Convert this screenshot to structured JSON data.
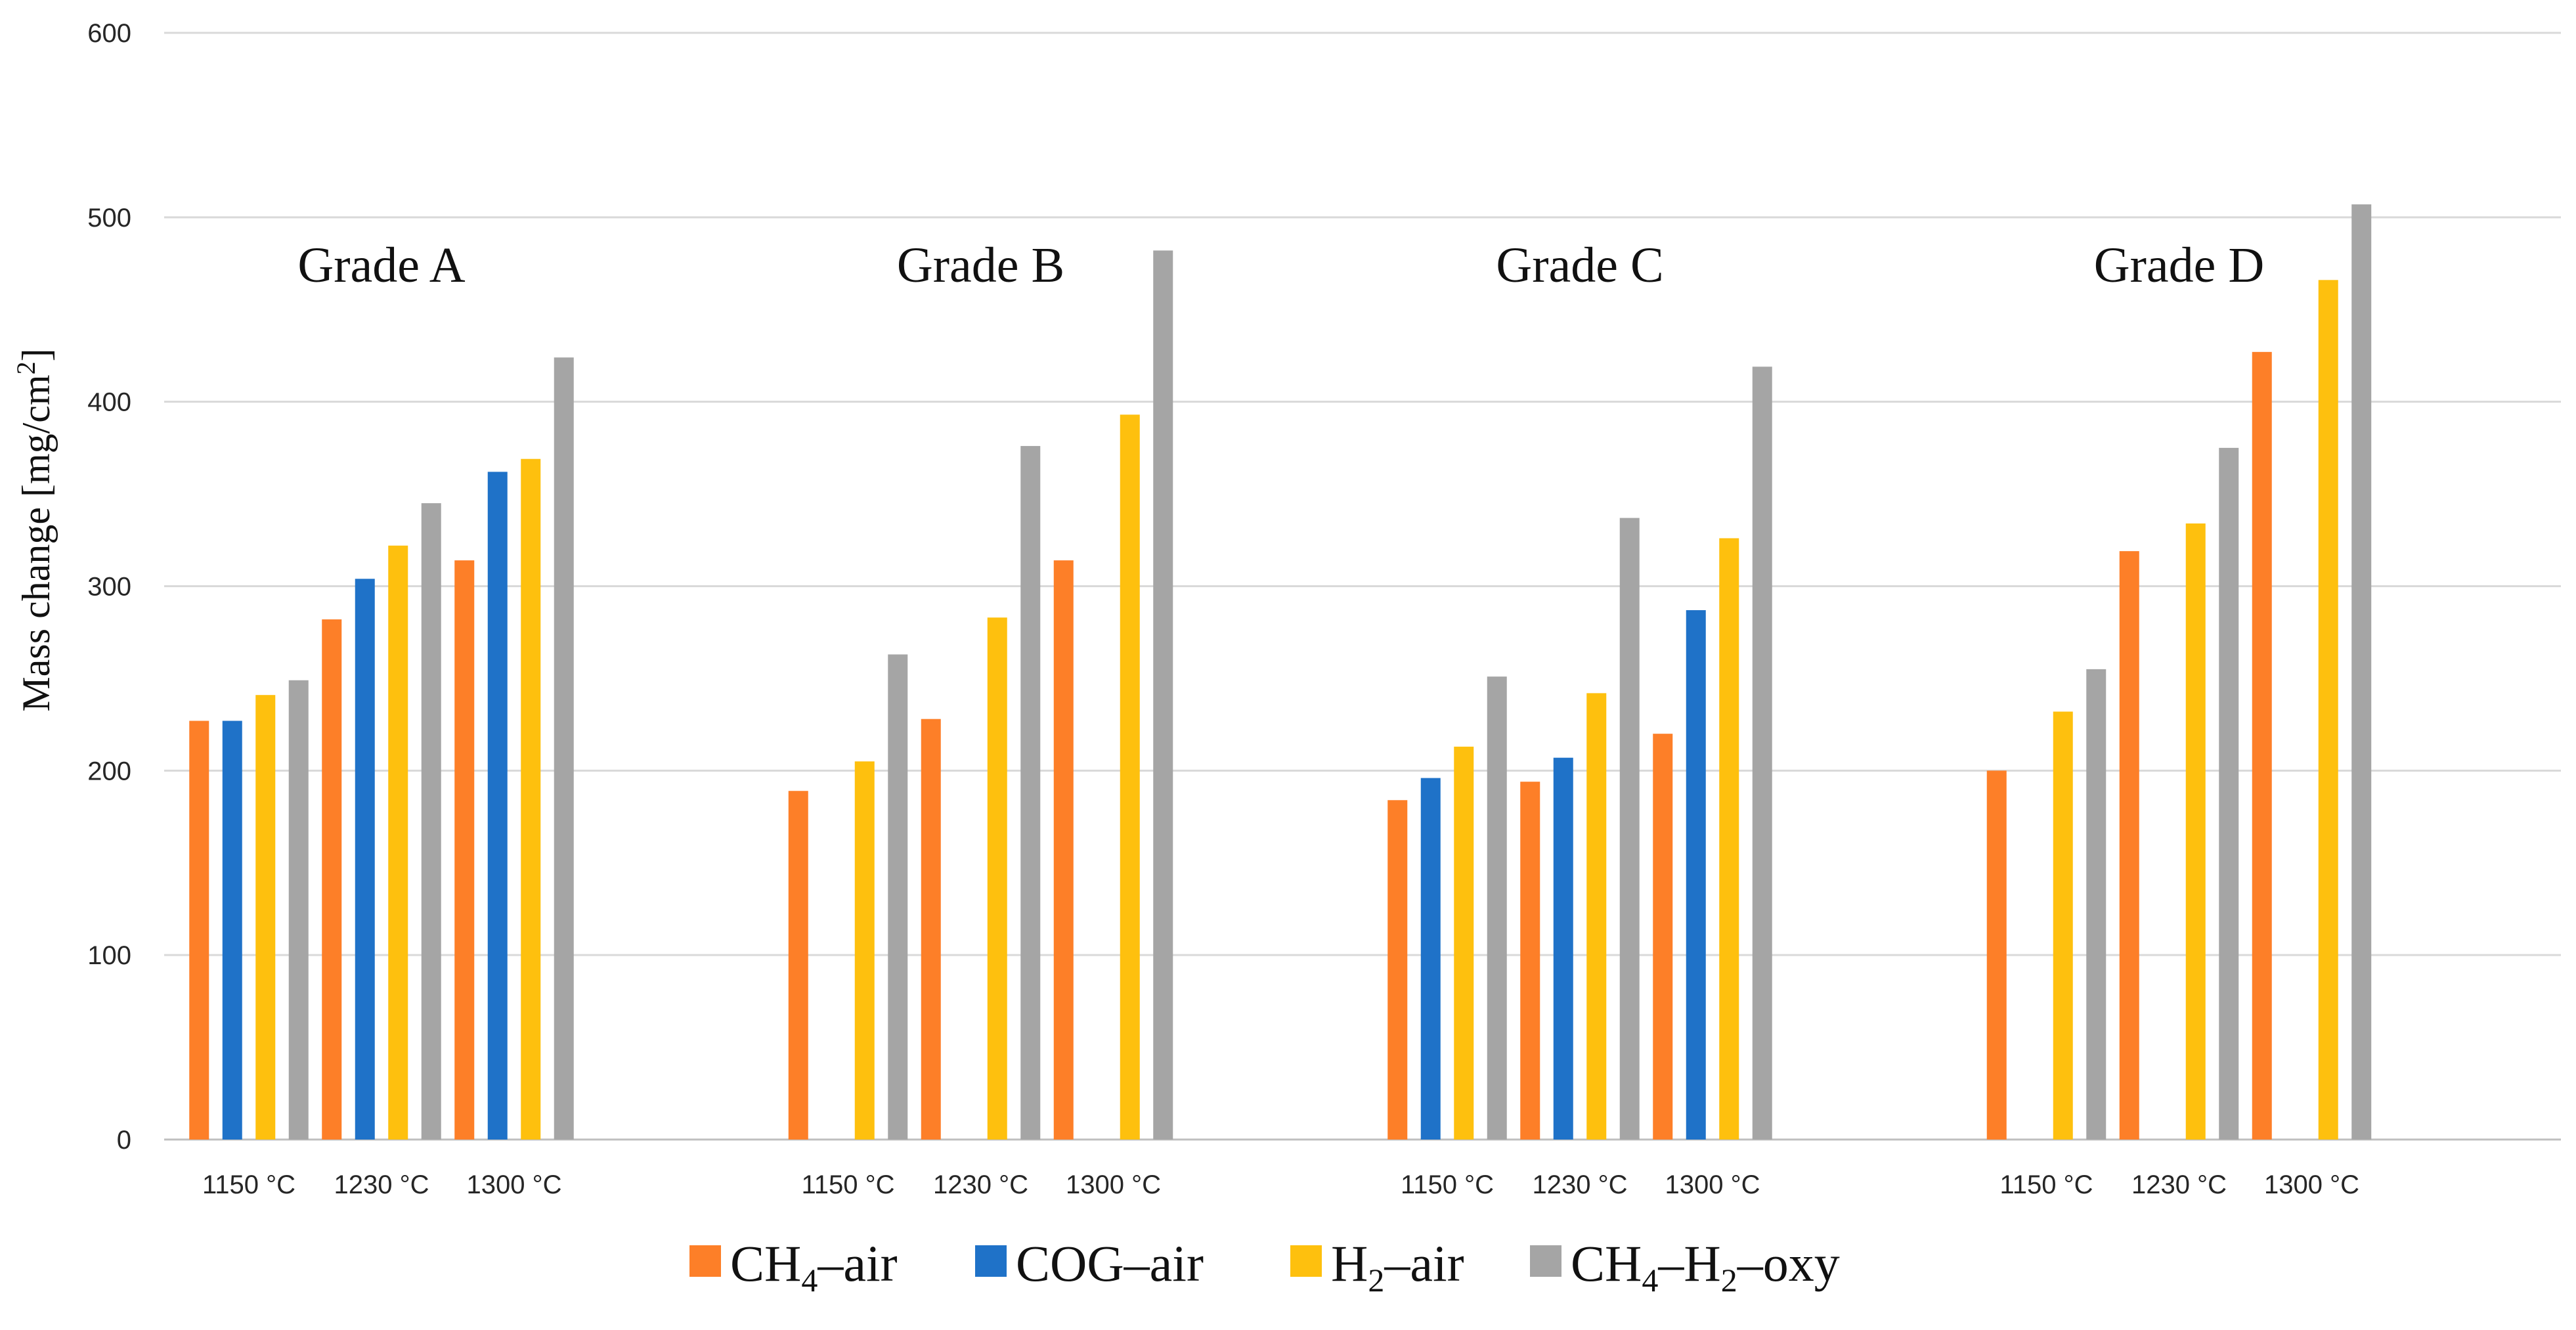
{
  "chart_data": {
    "type": "bar",
    "title": "",
    "xlabel": "",
    "ylabel": {
      "main": "Mass change [mg/cm",
      "sup": "2",
      "close": "]"
    },
    "ylim": [
      0,
      600
    ],
    "yticks": [
      0,
      100,
      200,
      300,
      400,
      500,
      600
    ],
    "grid": true,
    "legend_position": "bottom",
    "series": [
      {
        "name": "CH4–air",
        "label": {
          "base": "CH",
          "sub": "4",
          "rest": "–air"
        },
        "color": "#fd7f28"
      },
      {
        "name": "COG–air",
        "label": {
          "base": "COG–air",
          "sub": "",
          "rest": ""
        },
        "color": "#1f72c8"
      },
      {
        "name": "H2–air",
        "label": {
          "base": "H",
          "sub": "2",
          "rest": "–air"
        },
        "color": "#fec00e"
      },
      {
        "name": "CH4–H2–oxy",
        "label": {
          "base": "CH",
          "sub": "4",
          "rest": "–H",
          "sub2": "2",
          "rest2": "–oxy"
        },
        "color": "#a5a5a5"
      }
    ],
    "groups": [
      {
        "name": "Grade A",
        "temperatures": [
          {
            "label": "1150 °C",
            "values": [
              227,
              227,
              241,
              249
            ]
          },
          {
            "label": "1230 °C",
            "values": [
              282,
              304,
              322,
              345
            ]
          },
          {
            "label": "1300 °C",
            "values": [
              314,
              362,
              369,
              424
            ]
          }
        ]
      },
      {
        "name": "Grade B",
        "temperatures": [
          {
            "label": "1150 °C",
            "values": [
              189,
              null,
              205,
              263
            ]
          },
          {
            "label": "1230 °C",
            "values": [
              228,
              null,
              283,
              376
            ]
          },
          {
            "label": "1300 °C",
            "values": [
              314,
              null,
              393,
              482
            ]
          }
        ]
      },
      {
        "name": "Grade C",
        "temperatures": [
          {
            "label": "1150 °C",
            "values": [
              184,
              196,
              213,
              251
            ]
          },
          {
            "label": "1230 °C",
            "values": [
              194,
              207,
              242,
              337
            ]
          },
          {
            "label": "1300 °C",
            "values": [
              220,
              287,
              326,
              419
            ]
          }
        ]
      },
      {
        "name": "Grade D",
        "temperatures": [
          {
            "label": "1150 °C",
            "values": [
              200,
              null,
              232,
              255
            ]
          },
          {
            "label": "1230 °C",
            "values": [
              319,
              null,
              334,
              375
            ]
          },
          {
            "label": "1300 °C",
            "values": [
              427,
              null,
              466,
              507
            ]
          }
        ]
      }
    ]
  }
}
